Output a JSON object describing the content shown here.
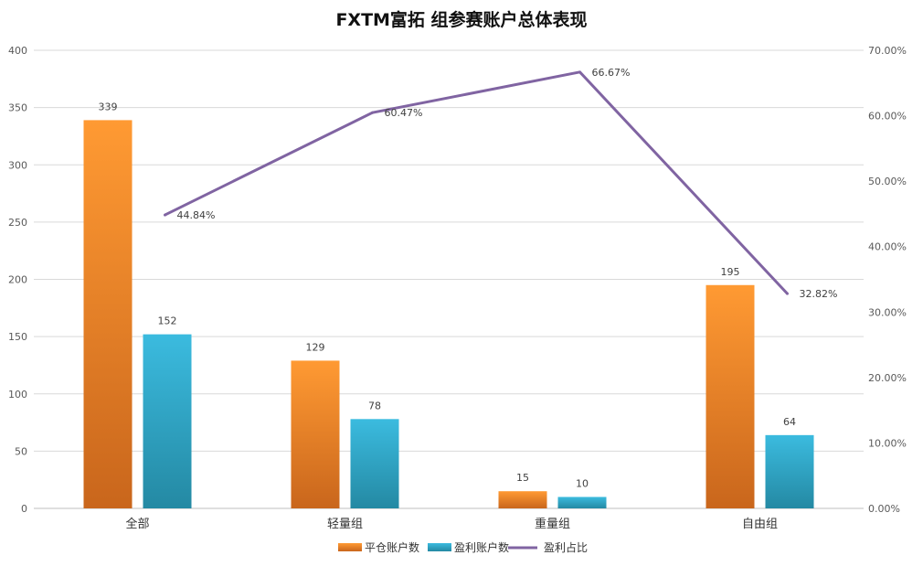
{
  "chart_data": {
    "type": "bar",
    "title": "FXTM富拓 组参赛账户总体表现",
    "categories": [
      "全部",
      "轻量组",
      "重量组",
      "自由组"
    ],
    "series": [
      {
        "name": "平仓账户数",
        "kind": "bar",
        "axis": "left",
        "color": "#f0842a",
        "values": [
          339,
          129,
          15,
          195
        ]
      },
      {
        "name": "盈利账户数",
        "kind": "bar",
        "axis": "left",
        "color": "#2fa9c9",
        "values": [
          152,
          78,
          10,
          64
        ]
      },
      {
        "name": "盈利占比",
        "kind": "line",
        "axis": "right",
        "color": "#8064a2",
        "values": [
          44.84,
          60.47,
          66.67,
          32.82
        ],
        "labels": [
          "44.84%",
          "60.47%",
          "66.67%",
          "32.82%"
        ]
      }
    ],
    "y_left": {
      "min": 0,
      "max": 400,
      "ticks": [
        "0",
        "50",
        "100",
        "150",
        "200",
        "250",
        "300",
        "350",
        "400"
      ]
    },
    "y_right": {
      "min": 0,
      "max": 70,
      "ticks": [
        "0.00%",
        "10.00%",
        "20.00%",
        "30.00%",
        "40.00%",
        "50.00%",
        "60.00%",
        "70.00%"
      ]
    },
    "grid": true,
    "legend": "bottom"
  }
}
